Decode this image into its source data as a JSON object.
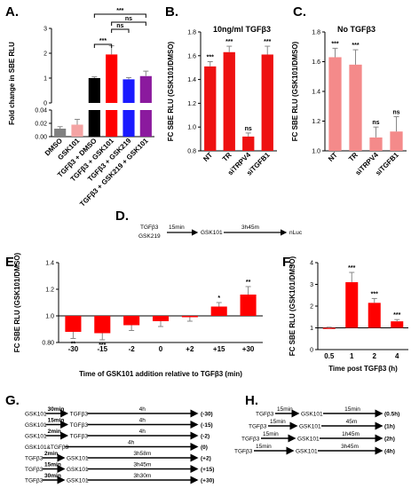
{
  "panels": {
    "A": "A.",
    "B": "B.",
    "C": "C.",
    "D": "D.",
    "E": "E.",
    "F": "F.",
    "G": "G.",
    "H": "H."
  },
  "chart_data": [
    {
      "id": "A",
      "type": "bar",
      "ylabel": "Fold change in SBE RLU",
      "y_broken_axis": true,
      "ylim_lower": [
        0,
        0.04
      ],
      "ylim_upper": [
        0,
        3
      ],
      "lower_ticks": [
        "0.00",
        "0.02",
        "0.04"
      ],
      "upper_ticks": [
        "0",
        "1",
        "2",
        "3"
      ],
      "categories": [
        "DMSO",
        "GSK101",
        "TGFβ3 + DMSO",
        "TGFβ3 + GSK101",
        "TGFβ3 + GSK219",
        "TGFβ3 + GSK219 + GSK101"
      ],
      "values": [
        0.012,
        0.018,
        1.0,
        1.95,
        0.95,
        1.08
      ],
      "errors": [
        0.003,
        0.008,
        0.05,
        0.35,
        0.07,
        0.2
      ],
      "colors": [
        "#808080",
        "#f4a3a3",
        "#000000",
        "#ff0000",
        "#1a1aff",
        "#8b1a9e"
      ],
      "brackets": [
        {
          "from": 2,
          "to": 3,
          "label": "***"
        },
        {
          "from": 3,
          "to": 4,
          "label": "ns"
        },
        {
          "from": 3,
          "to": 5,
          "label": "ns"
        },
        {
          "from": 2,
          "to": 5,
          "label": "***"
        }
      ]
    },
    {
      "id": "B",
      "type": "bar",
      "title": "10ng/ml TGFβ3",
      "ylabel": "FC SBE RLU (GSK101/DMSO)",
      "ylim": [
        0.8,
        1.8
      ],
      "yticks": [
        "0.8",
        "1.0",
        "1.2",
        "1.4",
        "1.6",
        "1.8"
      ],
      "categories": [
        "NT",
        "TR",
        "siTRPV4",
        "siTGFB1"
      ],
      "values": [
        1.51,
        1.63,
        0.92,
        1.61
      ],
      "errors": [
        0.04,
        0.05,
        0.03,
        0.07
      ],
      "significance": [
        "***",
        "***",
        "ns",
        "***"
      ],
      "color": "#ee1111"
    },
    {
      "id": "C",
      "type": "bar",
      "title": "No TGFβ3",
      "ylabel": "FC SBE RLU (GSK101/DMSO)",
      "ylim": [
        1.0,
        1.8
      ],
      "yticks": [
        "1.0",
        "1.2",
        "1.4",
        "1.6",
        "1.8"
      ],
      "categories": [
        "NT",
        "TR",
        "siTRPV4",
        "siTGFB1"
      ],
      "values": [
        1.63,
        1.58,
        1.09,
        1.13
      ],
      "errors": [
        0.06,
        0.1,
        0.07,
        0.1
      ],
      "significance": [
        "***",
        "***",
        "ns",
        "ns"
      ],
      "color": "#f48a8a"
    },
    {
      "id": "E",
      "type": "bar",
      "xlabel": "Time of GSK101 addition relative to TGFβ3 (min)",
      "ylabel": "FC SBE RLU (GSK101/DMSO)",
      "ylim": [
        0.8,
        1.4
      ],
      "yticks": [
        "0.80",
        "1.0",
        "1.2",
        "1.4"
      ],
      "categories": [
        "-30",
        "-15",
        "-2",
        "0",
        "+2",
        "+15",
        "+30"
      ],
      "values": [
        0.88,
        0.87,
        0.93,
        0.96,
        0.99,
        1.07,
        1.16
      ],
      "errors": [
        0.05,
        0.05,
        0.04,
        0.04,
        0.03,
        0.03,
        0.06
      ],
      "significance": [
        "**",
        "***",
        "",
        "",
        "",
        "*",
        "**"
      ],
      "color": "#ff0000",
      "reference_line": 1.0
    },
    {
      "id": "F",
      "type": "bar",
      "xlabel": "Time post TGFβ3 (h)",
      "ylabel": "FC SBE RLU (GSK101/DMSO)",
      "ylim": [
        0,
        4
      ],
      "yticks": [
        "0",
        "1",
        "2",
        "3",
        "4"
      ],
      "categories": [
        "0.5",
        "1",
        "2",
        "4"
      ],
      "values": [
        1.0,
        3.1,
        2.15,
        1.3
      ],
      "errors": [
        0.03,
        0.45,
        0.2,
        0.08
      ],
      "significance": [
        "",
        "***",
        "***",
        "***"
      ],
      "color": "#ff0000",
      "reference_line": 1.0
    }
  ],
  "panelD": {
    "reagents": [
      "TGFβ3",
      "GSK219"
    ],
    "step1_time": "15min",
    "step2": "GSK101",
    "step2_time": "3h45m",
    "readout": "nLuc"
  },
  "panelG": {
    "rows": [
      {
        "first": "GSK101",
        "t1": "30min",
        "second": "TGFβ3",
        "t2": "4h",
        "third": "",
        "label": "(-30)"
      },
      {
        "first": "GSK101",
        "t1": "15min",
        "second": "TGFβ3",
        "t2": "4h",
        "third": "",
        "label": "(-15)"
      },
      {
        "first": "GSK101",
        "t1": "2min",
        "second": "TGFβ3",
        "t2": "4h",
        "third": "",
        "label": "(-2)"
      },
      {
        "first": "GSK101&TGFβ3",
        "t1": "",
        "second": "",
        "t2": "4h",
        "third": "",
        "label": "(0)"
      },
      {
        "first": "TGFβ3",
        "t1": "2min",
        "second": "GSK101",
        "t2": "3h58m",
        "third": "",
        "label": "(+2)"
      },
      {
        "first": "TGFβ3",
        "t1": "15min",
        "second": "GSK101",
        "t2": "3h45m",
        "third": "",
        "label": "(+15)"
      },
      {
        "first": "TGFβ3",
        "t1": "30min",
        "second": "GSK101",
        "t2": "3h30m",
        "third": "",
        "label": "(+30)"
      }
    ]
  },
  "panelH": {
    "rows": [
      {
        "a": "TGFβ3",
        "t1": "15min",
        "b": "GSK101",
        "t2": "15min",
        "label": "(0.5h)"
      },
      {
        "a": "TGFβ3",
        "t1": "15min",
        "b": "GSK101",
        "t2": "45m",
        "label": "(1h)"
      },
      {
        "a": "TGFβ3",
        "t1": "15min",
        "b": "GSK101",
        "t2": "1h45m",
        "label": "(2h)"
      },
      {
        "a": "TGFβ3",
        "t1": "15min",
        "b": "GSK101",
        "t2": "3h45m",
        "label": "(4h)"
      }
    ]
  }
}
